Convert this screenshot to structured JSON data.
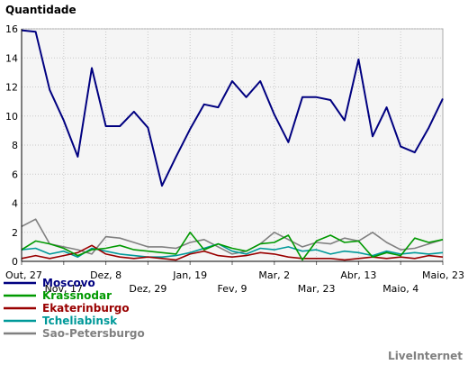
{
  "brand": "LiveInternet",
  "chart_data": {
    "type": "line",
    "ylabel": "Quantidade",
    "ylim": [
      0,
      16
    ],
    "yticks": [
      0,
      2,
      4,
      6,
      8,
      10,
      12,
      14,
      16
    ],
    "grid": true,
    "legend_position": "bottom-left",
    "x_count": 31,
    "x_labels": [
      {
        "index": 0,
        "label": "Out, 27"
      },
      {
        "index": 3,
        "label": "Nov, 17"
      },
      {
        "index": 6,
        "label": "Dez, 8"
      },
      {
        "index": 9,
        "label": "Dez, 29"
      },
      {
        "index": 12,
        "label": "Jan, 19"
      },
      {
        "index": 15,
        "label": "Fev, 9"
      },
      {
        "index": 18,
        "label": "Mar, 2"
      },
      {
        "index": 21,
        "label": "Mar, 23"
      },
      {
        "index": 24,
        "label": "Abr, 13"
      },
      {
        "index": 27,
        "label": "Maio, 4"
      },
      {
        "index": 30,
        "label": "Maio, 23"
      }
    ],
    "series": [
      {
        "name": "Sao-Petersburgo",
        "color": "#808080",
        "values": [
          2.4,
          2.9,
          1.2,
          1.0,
          0.8,
          0.5,
          1.7,
          1.6,
          1.3,
          1.0,
          1.0,
          0.9,
          1.3,
          1.5,
          1.0,
          0.5,
          0.7,
          1.2,
          2.0,
          1.5,
          1.0,
          1.3,
          1.2,
          1.6,
          1.4,
          2.0,
          1.3,
          0.8,
          0.9,
          1.2,
          1.5
        ]
      },
      {
        "name": "Tcheliabinsk",
        "color": "#009999",
        "values": [
          0.8,
          0.9,
          0.5,
          0.7,
          0.3,
          0.9,
          0.7,
          0.5,
          0.4,
          0.3,
          0.3,
          0.4,
          0.6,
          0.9,
          1.2,
          0.7,
          0.5,
          0.9,
          0.8,
          1.0,
          0.7,
          0.8,
          0.5,
          0.7,
          0.6,
          0.4,
          0.7,
          0.5,
          0.6,
          0.5,
          0.6
        ]
      },
      {
        "name": "Ekaterinburgo",
        "color": "#990000",
        "values": [
          0.2,
          0.4,
          0.2,
          0.4,
          0.6,
          1.1,
          0.5,
          0.3,
          0.2,
          0.3,
          0.2,
          0.1,
          0.5,
          0.7,
          0.4,
          0.3,
          0.4,
          0.6,
          0.5,
          0.3,
          0.2,
          0.2,
          0.2,
          0.1,
          0.2,
          0.3,
          0.2,
          0.3,
          0.2,
          0.4,
          0.3
        ]
      },
      {
        "name": "Krassnodar",
        "color": "#009900",
        "values": [
          0.8,
          1.4,
          1.2,
          0.9,
          0.4,
          0.8,
          0.9,
          1.1,
          0.8,
          0.7,
          0.6,
          0.5,
          2.0,
          0.8,
          1.2,
          0.9,
          0.7,
          1.2,
          1.3,
          1.8,
          0.1,
          1.4,
          1.8,
          1.3,
          1.4,
          0.3,
          0.6,
          0.4,
          1.6,
          1.3,
          1.5
        ]
      },
      {
        "name": "Moscovo",
        "color": "#000080",
        "values": [
          15.9,
          15.8,
          11.8,
          9.7,
          7.2,
          13.3,
          9.3,
          9.3,
          10.3,
          9.2,
          5.2,
          7.2,
          9.1,
          10.8,
          10.6,
          12.4,
          11.3,
          12.4,
          10.1,
          8.2,
          11.3,
          11.3,
          11.1,
          9.7,
          13.9,
          8.6,
          10.6,
          7.9,
          7.5,
          9.2,
          11.2
        ]
      }
    ],
    "legend_order": [
      "Moscovo",
      "Krassnodar",
      "Ekaterinburgo",
      "Tcheliabinsk",
      "Sao-Petersburgo"
    ]
  }
}
